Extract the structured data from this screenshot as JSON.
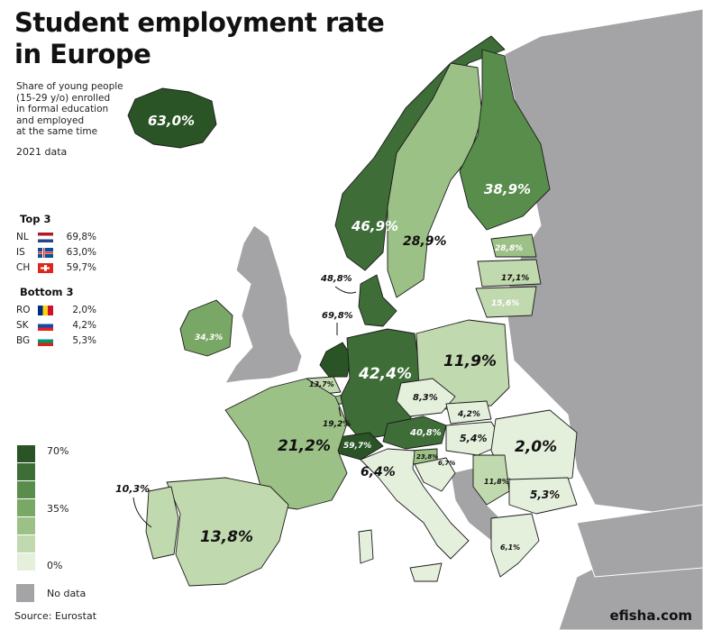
{
  "title": {
    "line1": "Student employment rate",
    "line2": "in Europe"
  },
  "subtitle": {
    "line1": "Share of young people",
    "line2": "(15-29 y/o) enrolled",
    "line3": "in formal education",
    "line4": "and employed",
    "line5": "at the same time"
  },
  "year_note": "2021 data",
  "top3": {
    "heading": "Top 3",
    "rows": [
      {
        "code": "NL",
        "value": "69,8%",
        "flag": "flag-netherlands"
      },
      {
        "code": "IS",
        "value": "63,0%",
        "flag": "flag-iceland"
      },
      {
        "code": "CH",
        "value": "59,7%",
        "flag": "flag-switzerland"
      }
    ]
  },
  "bottom3": {
    "heading": "Bottom 3",
    "rows": [
      {
        "code": "RO",
        "value": "2,0%",
        "flag": "flag-romania"
      },
      {
        "code": "SK",
        "value": "4,2%",
        "flag": "flag-slovakia"
      },
      {
        "code": "BG",
        "value": "5,3%",
        "flag": "flag-bulgaria"
      }
    ]
  },
  "legend": {
    "colors": [
      "#2a5426",
      "#3e6d38",
      "#588d4b",
      "#79a866",
      "#9cc187",
      "#c1d9ae",
      "#e4efdc"
    ],
    "tick_top": "70%",
    "tick_mid": "35%",
    "tick_bottom": "0%",
    "nodata_label": "No data",
    "nodata_color": "#a4a4a6"
  },
  "labels": {
    "iceland": "63,0%",
    "finland": "38,9%",
    "norway": "46,9%",
    "sweden": "28,9%",
    "estonia": "28,8%",
    "latvia": "17,1%",
    "lithuania": "15,6%",
    "ireland": "34,3%",
    "denmark": "48,8%",
    "netherlands": "69,8%",
    "belgium": "13,7%",
    "luxembourg": "19,2%",
    "germany": "42,4%",
    "poland": "11,9%",
    "czechia": "8,3%",
    "slovakia": "4,2%",
    "hungary": "5,4%",
    "austria": "40,8%",
    "switzerland": "59,7%",
    "slovenia": "23,8%",
    "croatia": "6,7%",
    "france": "21,2%",
    "italy": "6,4%",
    "romania": "2,0%",
    "serbia": "11,8%",
    "bulgaria": "5,3%",
    "greece": "6,1%",
    "spain": "13,8%",
    "portugal": "10,3%"
  },
  "source": "Source: Eurostat",
  "brand": "efisha.com"
}
